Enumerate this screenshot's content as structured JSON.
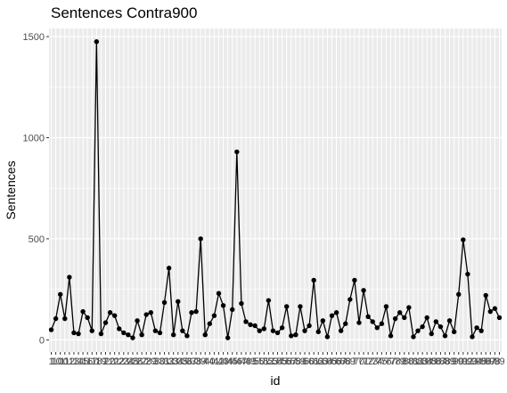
{
  "chart_data": {
    "type": "line",
    "title": "Sentences Contra900",
    "xlabel": "id",
    "ylabel": "Sentences",
    "ylim": [
      -60,
      1540
    ],
    "yticks": [
      0,
      500,
      1000,
      1500
    ],
    "grid": true,
    "panel_background": "#ebebeb",
    "grid_color": "#ffffff",
    "line_color": "#000000",
    "point_color": "#000000",
    "x": [
      "1",
      "10",
      "100",
      "11",
      "12",
      "13",
      "14",
      "15",
      "16",
      "17",
      "18",
      "19",
      "2",
      "20",
      "21",
      "22",
      "23",
      "24",
      "25",
      "26",
      "27",
      "28",
      "29",
      "3",
      "30",
      "31",
      "32",
      "33",
      "34",
      "35",
      "36",
      "37",
      "38",
      "39",
      "4",
      "40",
      "41",
      "42",
      "43",
      "44",
      "45",
      "46",
      "47",
      "48",
      "49",
      "5",
      "50",
      "51",
      "52",
      "53",
      "54",
      "55",
      "56",
      "57",
      "58",
      "59",
      "6",
      "60",
      "61",
      "62",
      "63",
      "64",
      "65",
      "66",
      "67",
      "68",
      "69",
      "7",
      "70",
      "71",
      "72",
      "73",
      "74",
      "75",
      "76",
      "77",
      "78",
      "79",
      "8",
      "80",
      "81",
      "82",
      "83",
      "84",
      "85",
      "86",
      "87",
      "88",
      "89",
      "9",
      "90",
      "91",
      "92",
      "93",
      "94",
      "95",
      "96",
      "97",
      "98",
      "99"
    ],
    "values": [
      50,
      105,
      225,
      105,
      310,
      35,
      30,
      140,
      110,
      45,
      1475,
      30,
      85,
      135,
      120,
      55,
      35,
      25,
      10,
      95,
      25,
      125,
      135,
      45,
      35,
      185,
      355,
      25,
      190,
      45,
      20,
      135,
      140,
      500,
      25,
      80,
      120,
      230,
      170,
      10,
      150,
      930,
      180,
      90,
      75,
      70,
      45,
      55,
      195,
      45,
      35,
      60,
      165,
      20,
      25,
      165,
      45,
      70,
      295,
      40,
      95,
      15,
      120,
      135,
      45,
      80,
      200,
      295,
      85,
      245,
      115,
      90,
      60,
      80,
      165,
      20,
      105,
      135,
      110,
      160,
      15,
      45,
      65,
      110,
      30,
      90,
      65,
      20,
      95,
      40,
      225,
      495,
      325,
      15,
      60,
      45,
      220,
      140,
      155,
      110
    ]
  }
}
